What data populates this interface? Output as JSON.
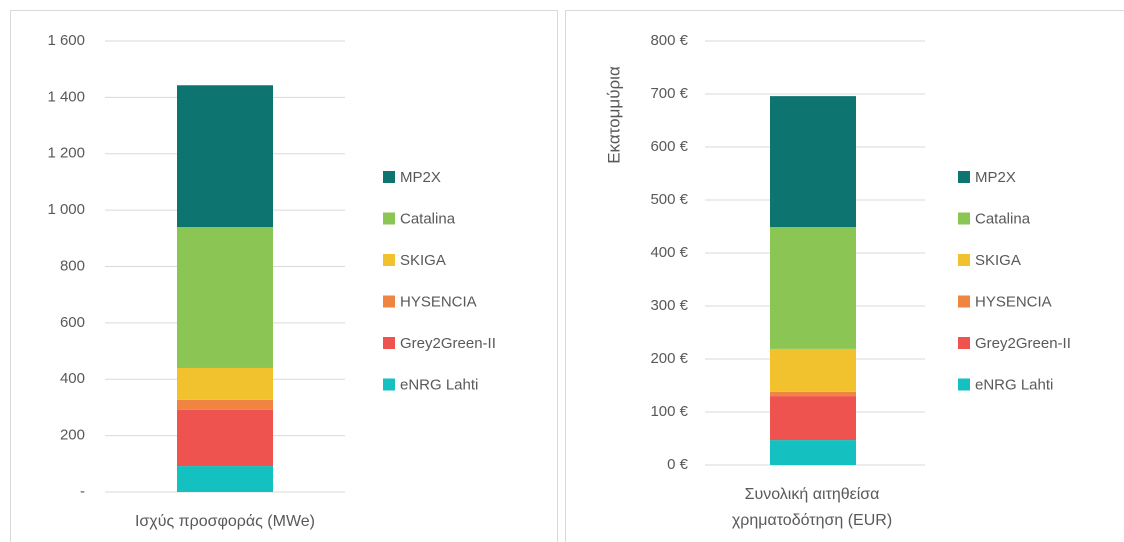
{
  "chart_data": [
    {
      "type": "bar",
      "stacked": true,
      "categories": [
        "Ισχύς προσφοράς (MWe)"
      ],
      "series": [
        {
          "name": "eNRG Lahti",
          "color": "#14c0c0",
          "values": [
            92
          ]
        },
        {
          "name": "Grey2Green-II",
          "color": "#ef5350",
          "values": [
            200
          ]
        },
        {
          "name": "HYSENCIA",
          "color": "#f08542",
          "values": [
            35
          ]
        },
        {
          "name": "SKIGA",
          "color": "#f2c12e",
          "values": [
            113
          ]
        },
        {
          "name": "Catalina",
          "color": "#8bc655",
          "values": [
            500
          ]
        },
        {
          "name": "MP2X",
          "color": "#0e7470",
          "values": [
            503
          ]
        }
      ],
      "ylim": [
        0,
        1600
      ],
      "yticks": [
        {
          "value": 0,
          "label": "-"
        },
        200,
        400,
        600,
        800,
        {
          "value": 1000,
          "label": "1 000"
        },
        {
          "value": 1200,
          "label": "1 200"
        },
        {
          "value": 1400,
          "label": "1 400"
        },
        {
          "value": 1600,
          "label": "1 600"
        }
      ],
      "grid": true,
      "legend": "right"
    },
    {
      "type": "bar",
      "stacked": true,
      "categories": [
        "Συνολική αιτηθείσα χρηματοδότηση (EUR)"
      ],
      "ylabel": "Εκατομμύρια",
      "series": [
        {
          "name": "eNRG Lahti",
          "color": "#14c0c0",
          "values": [
            47
          ]
        },
        {
          "name": "Grey2Green-II",
          "color": "#ef5350",
          "values": [
            83
          ]
        },
        {
          "name": "HYSENCIA",
          "color": "#f08542",
          "values": [
            8
          ]
        },
        {
          "name": "SKIGA",
          "color": "#f2c12e",
          "values": [
            81
          ]
        },
        {
          "name": "Catalina",
          "color": "#8bc655",
          "values": [
            230
          ]
        },
        {
          "name": "MP2X",
          "color": "#0e7470",
          "values": [
            247
          ]
        }
      ],
      "ylim": [
        0,
        800
      ],
      "yticks": [
        {
          "value": 0,
          "label": "0 €"
        },
        {
          "value": 100,
          "label": "100 €"
        },
        {
          "value": 200,
          "label": "200 €"
        },
        {
          "value": 300,
          "label": "300 €"
        },
        {
          "value": 400,
          "label": "400 €"
        },
        {
          "value": 500,
          "label": "500 €"
        },
        {
          "value": 600,
          "label": "600 €"
        },
        {
          "value": 700,
          "label": "700 €"
        },
        {
          "value": 800,
          "label": "800 €"
        }
      ],
      "grid": true,
      "legend": "right"
    }
  ]
}
